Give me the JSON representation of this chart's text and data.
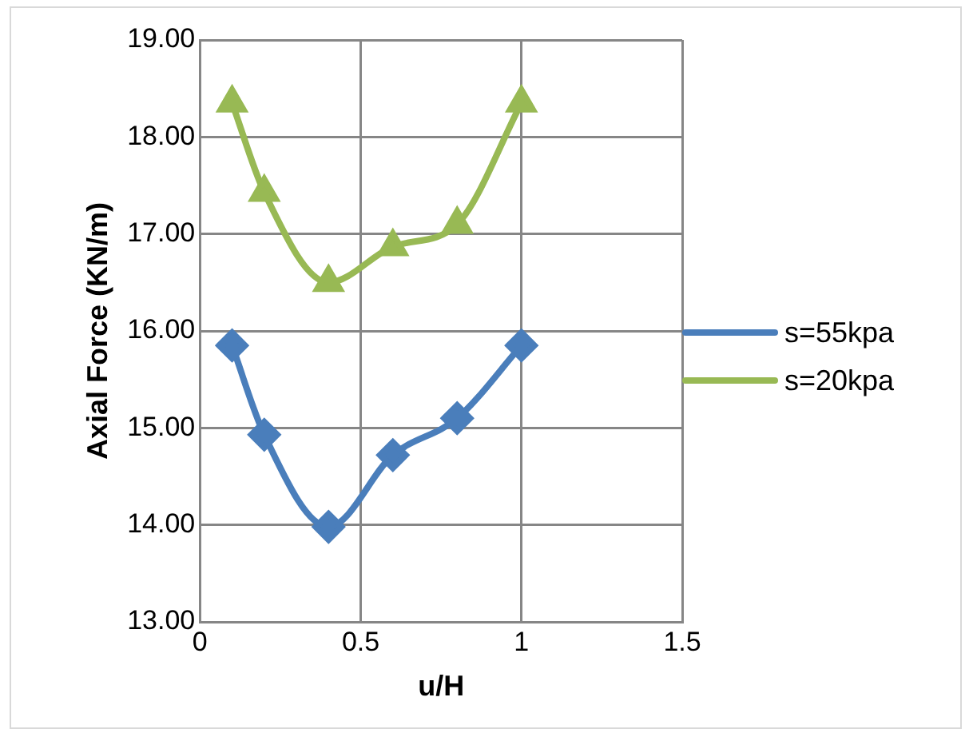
{
  "chart_data": {
    "type": "line",
    "xlabel": "u/H",
    "ylabel": "Axial Force (KN/m)",
    "x": [
      0.1,
      0.2,
      0.4,
      0.6,
      0.8,
      1.0
    ],
    "series": [
      {
        "name": "s=55kpa",
        "color": "#4a7ebb",
        "marker": "diamond",
        "values": [
          15.85,
          14.93,
          13.98,
          14.72,
          15.1,
          15.85
        ]
      },
      {
        "name": "s=20kpa",
        "color": "#98b954",
        "marker": "triangle",
        "values": [
          18.35,
          17.43,
          16.5,
          16.87,
          17.1,
          18.35
        ]
      }
    ],
    "xlim": [
      0,
      1.5
    ],
    "xticks": [
      {
        "value": 0,
        "label": "0"
      },
      {
        "value": 0.5,
        "label": "0.5"
      },
      {
        "value": 1,
        "label": "1"
      },
      {
        "value": 1.5,
        "label": "1.5"
      }
    ],
    "ylim": [
      13,
      19
    ],
    "yticks": [
      {
        "value": 13,
        "label": "13.00"
      },
      {
        "value": 14,
        "label": "14.00"
      },
      {
        "value": 15,
        "label": "15.00"
      },
      {
        "value": 16,
        "label": "16.00"
      },
      {
        "value": 17,
        "label": "17.00"
      },
      {
        "value": 18,
        "label": "18.00"
      },
      {
        "value": 19,
        "label": "19.00"
      }
    ],
    "grid": true,
    "legend": "right"
  }
}
